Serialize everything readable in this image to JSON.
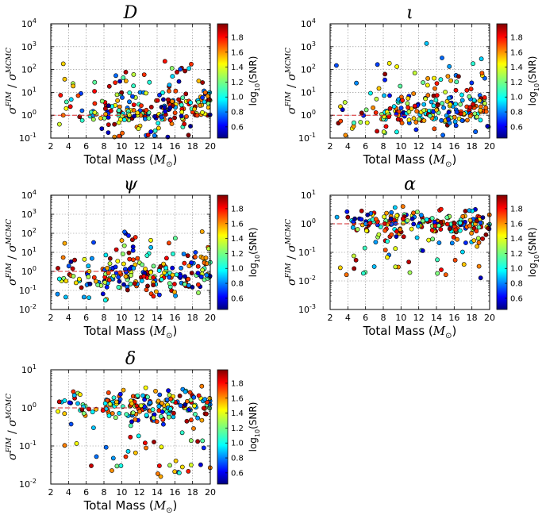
{
  "chart_data": [
    {
      "id": "D",
      "type": "scatter",
      "title": "D",
      "xlabel": "Total Mass",
      "xlabel_unit": "M",
      "xlabel_sub": "⊙",
      "ylabel": "σFIM / σMCMC",
      "y_num": "σ",
      "y_num_sup": "FIM",
      "y_den": "σ",
      "y_den_sup": "MCMC",
      "xlim": [
        2,
        20
      ],
      "ylim_exp": [
        -1,
        4
      ],
      "reference_y": 1,
      "xticks": [
        "2",
        "4",
        "6",
        "8",
        "10",
        "12",
        "14",
        "16",
        "18",
        "20"
      ],
      "yticks": [
        {
          "base": "10",
          "exp": "-1"
        },
        {
          "base": "10",
          "exp": "0"
        },
        {
          "base": "10",
          "exp": "1"
        },
        {
          "base": "10",
          "exp": "2"
        },
        {
          "base": "10",
          "exp": "3"
        },
        {
          "base": "10",
          "exp": "4"
        }
      ],
      "colorbar": {
        "label_prefix": "log",
        "label_sub": "10",
        "label_suffix": "(SNR)",
        "ticks": [
          "0.6",
          "0.8",
          "1.0",
          "1.2",
          "1.4",
          "1.6",
          "1.8"
        ],
        "range": [
          0.45,
          1.98
        ]
      },
      "center_exp": 0.1,
      "spread": 1.2,
      "mass_trend": 0.03
    },
    {
      "id": "iota",
      "type": "scatter",
      "title": "ι",
      "xlabel": "Total Mass",
      "xlabel_unit": "M",
      "xlabel_sub": "⊙",
      "ylabel": "σFIM / σMCMC",
      "y_num": "σ",
      "y_num_sup": "FIM",
      "y_den": "σ",
      "y_den_sup": "MCMC",
      "xlim": [
        2,
        20
      ],
      "ylim_exp": [
        -1,
        4
      ],
      "reference_y": 1,
      "xticks": [
        "2",
        "4",
        "6",
        "8",
        "10",
        "12",
        "14",
        "16",
        "18",
        "20"
      ],
      "yticks": [
        {
          "base": "10",
          "exp": "-1"
        },
        {
          "base": "10",
          "exp": "0"
        },
        {
          "base": "10",
          "exp": "1"
        },
        {
          "base": "10",
          "exp": "2"
        },
        {
          "base": "10",
          "exp": "3"
        },
        {
          "base": "10",
          "exp": "4"
        }
      ],
      "colorbar": {
        "label_prefix": "log",
        "label_sub": "10",
        "label_suffix": "(SNR)",
        "ticks": [
          "0.6",
          "0.8",
          "1.0",
          "1.2",
          "1.4",
          "1.6",
          "1.8"
        ],
        "range": [
          0.45,
          1.98
        ]
      },
      "center_exp": 0.1,
      "spread": 1.3,
      "mass_trend": 0.02
    },
    {
      "id": "psi",
      "type": "scatter",
      "title": "ψ",
      "xlabel": "Total Mass",
      "xlabel_unit": "M",
      "xlabel_sub": "⊙",
      "ylabel": "σFIM / σMCMC",
      "y_num": "σ",
      "y_num_sup": "FIM",
      "y_den": "σ",
      "y_den_sup": "MCMC",
      "xlim": [
        2,
        20
      ],
      "ylim_exp": [
        -2,
        4
      ],
      "reference_y": 1,
      "xticks": [
        "2",
        "4",
        "6",
        "8",
        "10",
        "12",
        "14",
        "16",
        "18",
        "20"
      ],
      "yticks": [
        {
          "base": "10",
          "exp": "-2"
        },
        {
          "base": "10",
          "exp": "-1"
        },
        {
          "base": "10",
          "exp": "0"
        },
        {
          "base": "10",
          "exp": "1"
        },
        {
          "base": "10",
          "exp": "2"
        },
        {
          "base": "10",
          "exp": "3"
        },
        {
          "base": "10",
          "exp": "4"
        }
      ],
      "colorbar": {
        "label_prefix": "log",
        "label_sub": "10",
        "label_suffix": "(SNR)",
        "ticks": [
          "0.6",
          "0.8",
          "1.0",
          "1.2",
          "1.4",
          "1.6",
          "1.8"
        ],
        "range": [
          0.45,
          1.98
        ]
      },
      "center_exp": -0.3,
      "spread": 1.4,
      "mass_trend": 0.02
    },
    {
      "id": "alpha",
      "type": "scatter",
      "title": "α",
      "xlabel": "Total Mass",
      "xlabel_unit": "M",
      "xlabel_sub": "⊙",
      "ylabel": "σFIM / σMCMC",
      "y_num": "σ",
      "y_num_sup": "FIM",
      "y_den": "σ",
      "y_den_sup": "MCMC",
      "xlim": [
        2,
        20
      ],
      "ylim_exp": [
        -3,
        1
      ],
      "reference_y": 1,
      "xticks": [
        "2",
        "4",
        "6",
        "8",
        "10",
        "12",
        "14",
        "16",
        "18",
        "20"
      ],
      "yticks": [
        {
          "base": "10",
          "exp": "-3"
        },
        {
          "base": "10",
          "exp": "-2"
        },
        {
          "base": "10",
          "exp": "-1"
        },
        {
          "base": "10",
          "exp": "0"
        },
        {
          "base": "10",
          "exp": "1"
        }
      ],
      "colorbar": {
        "label_prefix": "log",
        "label_sub": "10",
        "label_suffix": "(SNR)",
        "ticks": [
          "0.6",
          "0.8",
          "1.0",
          "1.2",
          "1.4",
          "1.6",
          "1.8"
        ],
        "range": [
          0.45,
          1.98
        ]
      },
      "center_exp": 0.05,
      "spread": 0.25,
      "low_tail": true
    },
    {
      "id": "delta",
      "type": "scatter",
      "title": "δ",
      "xlabel": "Total Mass",
      "xlabel_unit": "M",
      "xlabel_sub": "⊙",
      "ylabel": "σFIM / σMCMC",
      "y_num": "σ",
      "y_num_sup": "FIM",
      "y_den": "σ",
      "y_den_sup": "MCMC",
      "xlim": [
        2,
        20
      ],
      "ylim_exp": [
        -2,
        1
      ],
      "reference_y": 1,
      "xticks": [
        "2",
        "4",
        "6",
        "8",
        "10",
        "12",
        "14",
        "16",
        "18",
        "20"
      ],
      "yticks": [
        {
          "base": "10",
          "exp": "-2"
        },
        {
          "base": "10",
          "exp": "-1"
        },
        {
          "base": "10",
          "exp": "0"
        },
        {
          "base": "10",
          "exp": "1"
        }
      ],
      "colorbar": {
        "label_prefix": "log",
        "label_sub": "10",
        "label_suffix": "(SNR)",
        "ticks": [
          "0.6",
          "0.8",
          "1.0",
          "1.2",
          "1.4",
          "1.6",
          "1.8"
        ],
        "range": [
          0.45,
          1.98
        ]
      },
      "center_exp": 0.05,
      "spread": 0.2,
      "low_tail": true
    }
  ]
}
